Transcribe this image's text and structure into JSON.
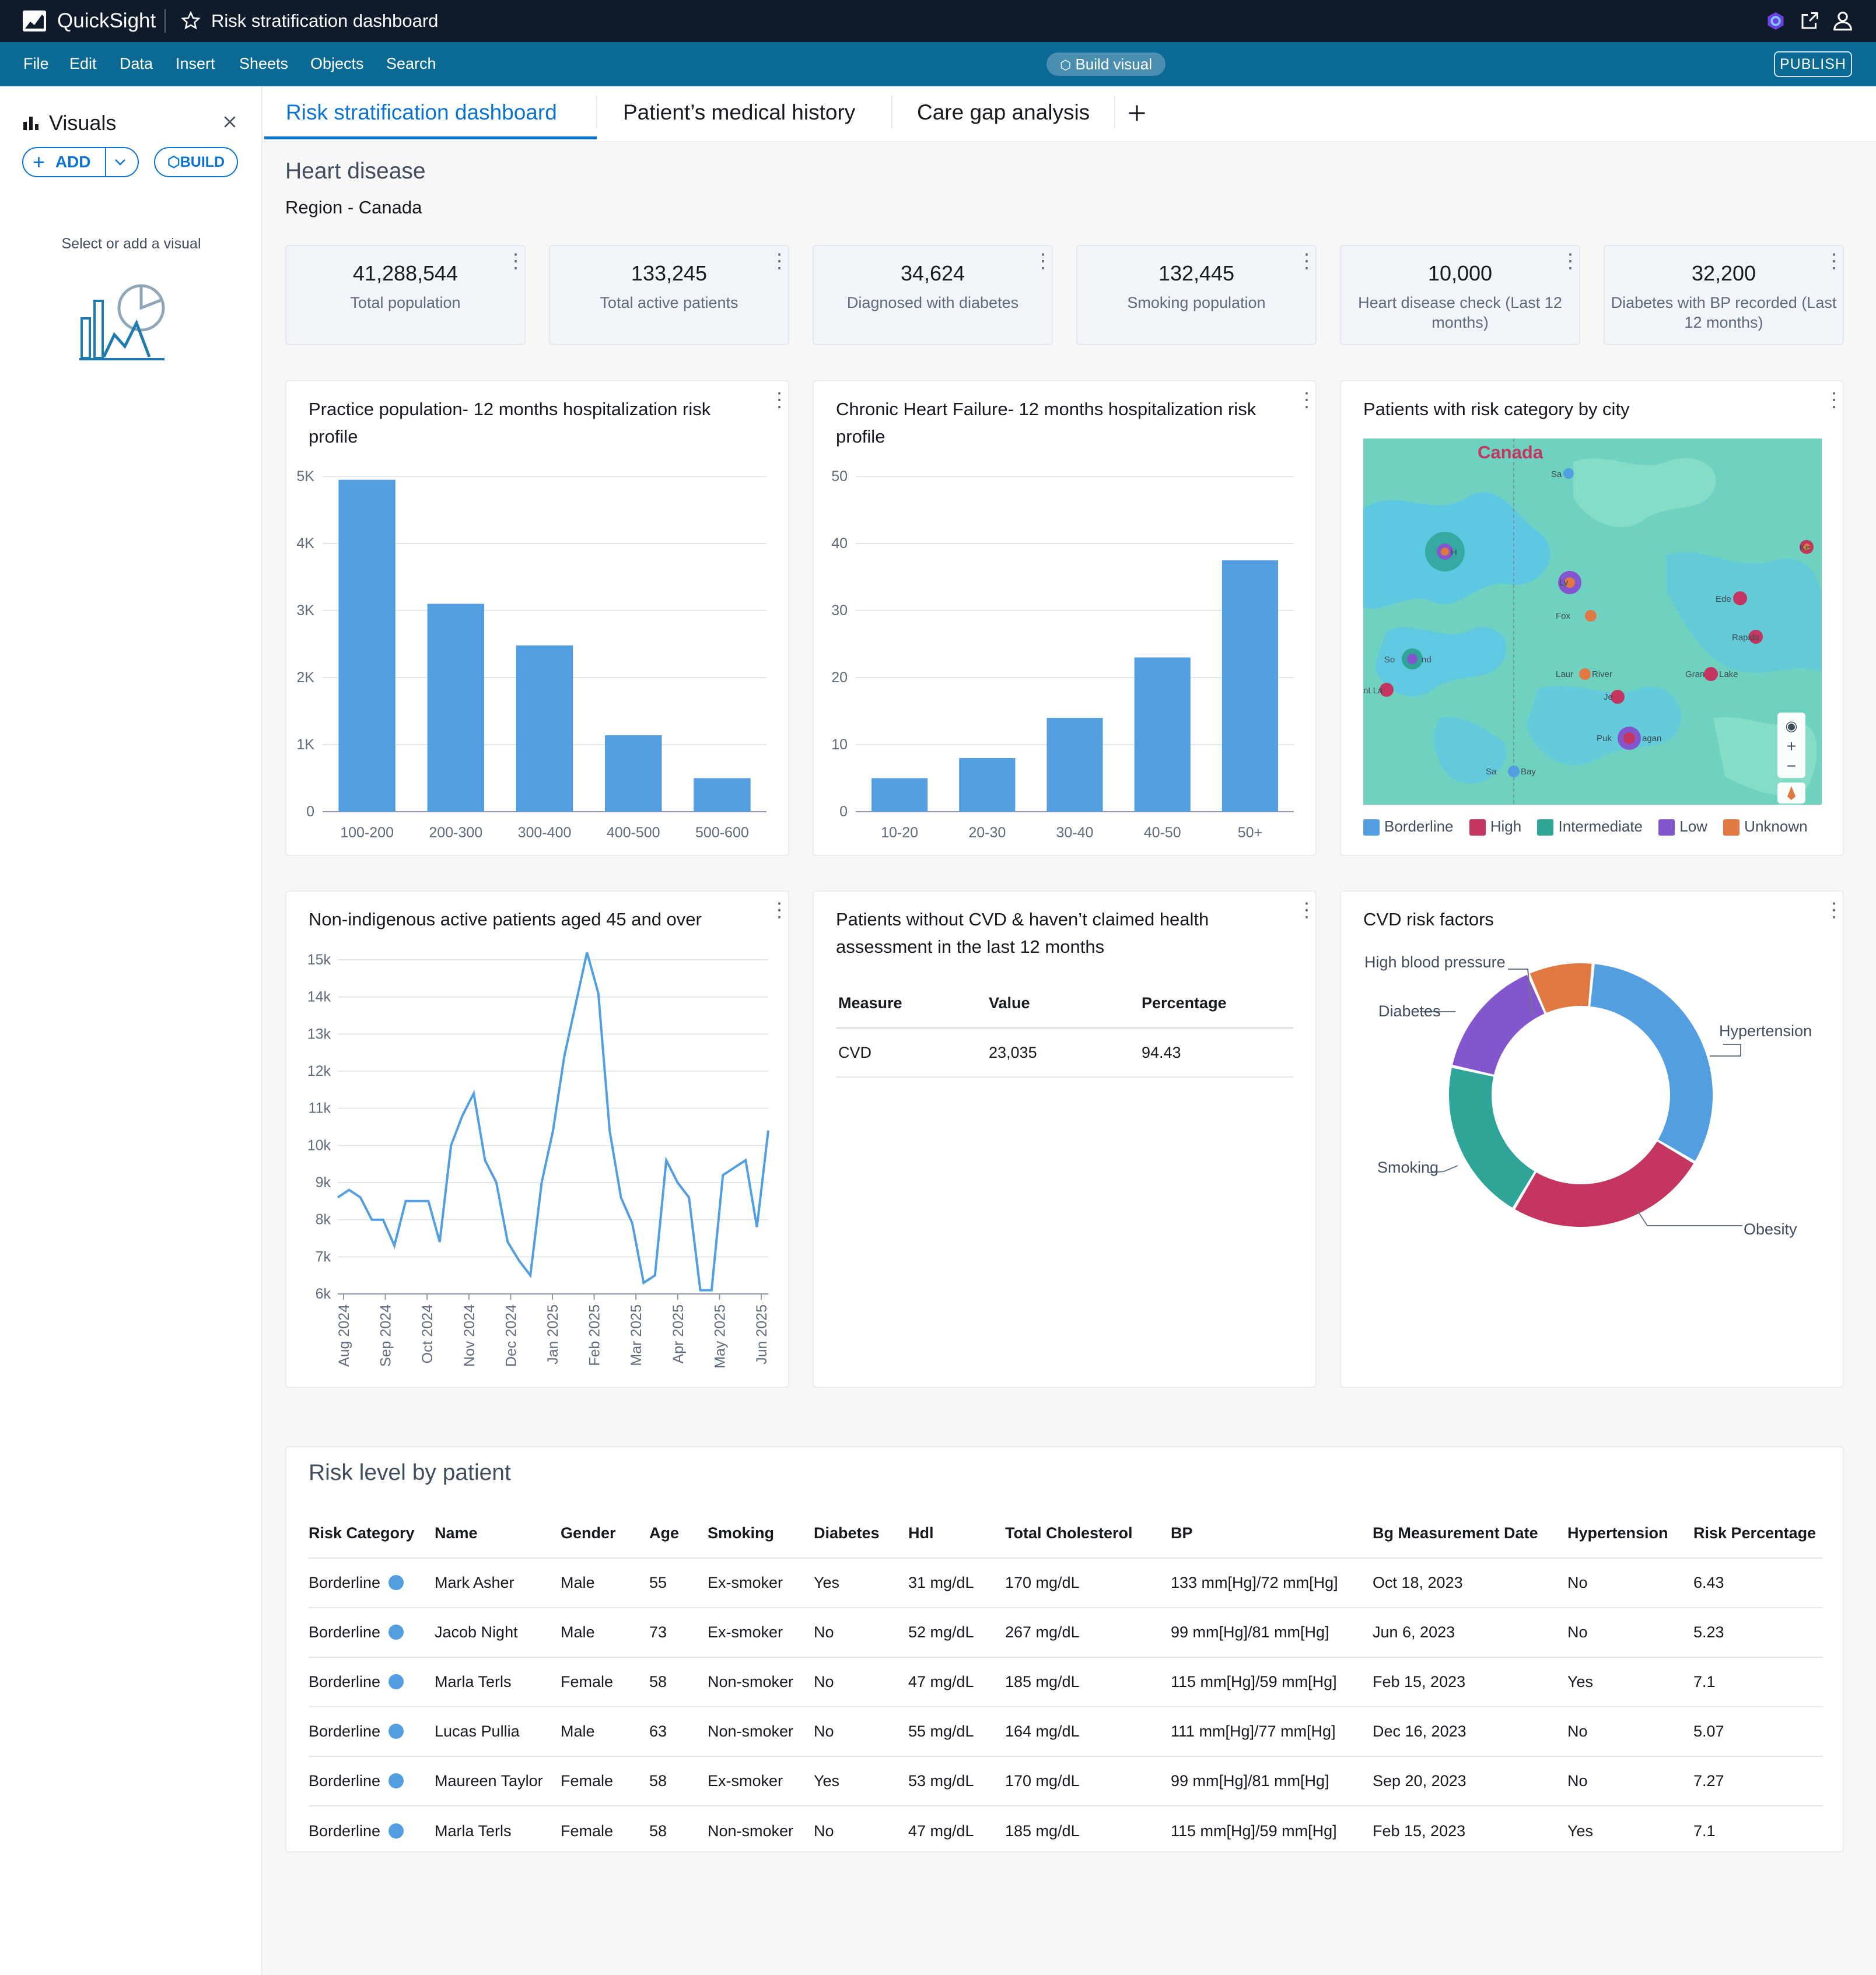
{
  "app": {
    "name": "QuickSight",
    "doc_title": "Risk stratification dashboard"
  },
  "menu": [
    "File",
    "Edit",
    "Data",
    "Insert",
    "Sheets",
    "Objects",
    "Search"
  ],
  "build_visual_label": "Build visual",
  "publish_label": "PUBLISH",
  "sidebar": {
    "title": "Visuals",
    "add_label": "ADD",
    "build_label": "BUILD",
    "empty_hint": "Select or add a visual"
  },
  "tabs": [
    "Risk stratification dashboard",
    "Patient’s medical history",
    "Care gap analysis"
  ],
  "header": {
    "title": "Heart disease",
    "subtitle": "Region - Canada"
  },
  "kpis": [
    {
      "value": "41,288,544",
      "label": "Total population"
    },
    {
      "value": "133,245",
      "label": "Total active patients"
    },
    {
      "value": "34,624",
      "label": "Diagnosed with diabetes"
    },
    {
      "value": "132,445",
      "label": "Smoking population"
    },
    {
      "value": "10,000",
      "label": "Heart disease check (Last 12 months)"
    },
    {
      "value": "32,200",
      "label": "Diabetes with BP recorded (Last 12 months)"
    }
  ],
  "chart_data": [
    {
      "type": "bar",
      "title": "Practice population- 12 months hospitalization risk profile",
      "categories": [
        "100-200",
        "200-300",
        "300-400",
        "400-500",
        "500-600"
      ],
      "values": [
        4950,
        3100,
        2480,
        1140,
        500
      ],
      "ylim": [
        0,
        5000
      ],
      "yticks": [
        "0",
        "1K",
        "2K",
        "3K",
        "4K",
        "5K"
      ],
      "color": "#529ee0"
    },
    {
      "type": "bar",
      "title": "Chronic Heart Failure- 12 months hospitalization risk profile",
      "categories": [
        "10-20",
        "20-30",
        "30-40",
        "40-50",
        "50+"
      ],
      "values": [
        5,
        8,
        14,
        23,
        37.5
      ],
      "ylim": [
        0,
        50
      ],
      "yticks": [
        "0",
        "10",
        "20",
        "30",
        "40",
        "50"
      ],
      "color": "#529ee0"
    },
    {
      "type": "line",
      "title": "Non-indigenous active patients aged 45 and over",
      "x_labels": [
        "Aug 2024",
        "Sep 2024",
        "Oct 2024",
        "Nov 2024",
        "Dec 2024",
        "Jan 2025",
        "Feb 2025",
        "Mar 2025",
        "Apr 2025",
        "May 2025",
        "Jun 2025"
      ],
      "values": [
        8600,
        8800,
        8600,
        8000,
        8000,
        7300,
        8500,
        8500,
        8500,
        7400,
        10000,
        10800,
        11400,
        9600,
        9000,
        7400,
        6900,
        6500,
        9000,
        10400,
        12400,
        13800,
        15200,
        14100,
        10400,
        8600,
        7900,
        6300,
        6500,
        9600,
        9000,
        8600,
        6100,
        6100,
        9200,
        9400,
        9600,
        7800,
        10400
      ],
      "ylim": [
        6000,
        15000
      ],
      "yticks": [
        "6k",
        "7k",
        "8k",
        "9k",
        "10k",
        "11k",
        "12k",
        "13k",
        "14k",
        "15k"
      ],
      "color": "#529ee0"
    },
    {
      "type": "pie",
      "title": "CVD risk factors",
      "categories": [
        "Hypertension",
        "Obesity",
        "Smoking",
        "Diabetes",
        "High blood pressure"
      ],
      "values": [
        32,
        25,
        20,
        15,
        8
      ],
      "colors": [
        "#529ee0",
        "#c4365f",
        "#2ea597",
        "#8456ce",
        "#e07941"
      ]
    }
  ],
  "map": {
    "title": "Patients with risk category by city",
    "country_label": "Canada",
    "places": [
      "Sa",
      "H",
      "Ly",
      "Ede",
      "Fox",
      "So",
      "nd",
      "Laur",
      "River",
      "Je",
      "Gran",
      "Lake",
      "Puk",
      "agan",
      "Sa",
      "Bay",
      "Rapids",
      "Ke",
      "nt La"
    ],
    "legend": [
      {
        "label": "Borderline",
        "color": "#529ee0"
      },
      {
        "label": "High",
        "color": "#c4365f"
      },
      {
        "label": "Intermediate",
        "color": "#2ea597"
      },
      {
        "label": "Low",
        "color": "#8456ce"
      },
      {
        "label": "Unknown",
        "color": "#e07941"
      }
    ]
  },
  "cvd_table": {
    "title": "Patients without CVD & haven’t claimed health assessment in the last 12 months",
    "columns": [
      "Measure",
      "Value",
      "Percentage"
    ],
    "rows": [
      [
        "CVD",
        "23,035",
        "94.43"
      ]
    ]
  },
  "patients": {
    "title": "Risk level by patient",
    "columns": [
      "Risk Category",
      "Name",
      "Gender",
      "Age",
      "Smoking",
      "Diabetes",
      "Hdl",
      "Total Cholesterol",
      "BP",
      "Bg Measurement Date",
      "Hypertension",
      "Risk Percentage"
    ],
    "rows": [
      [
        "Borderline",
        "Mark Asher",
        "Male",
        "55",
        "Ex-smoker",
        "Yes",
        "31 mg/dL",
        "170 mg/dL",
        "133 mm[Hg]/72 mm[Hg]",
        "Oct 18, 2023",
        "No",
        "6.43"
      ],
      [
        "Borderline",
        "Jacob Night",
        "Male",
        "73",
        "Ex-smoker",
        "No",
        "52 mg/dL",
        "267 mg/dL",
        "99 mm[Hg]/81 mm[Hg]",
        "Jun 6, 2023",
        "No",
        "5.23"
      ],
      [
        "Borderline",
        "Marla Terls",
        "Female",
        "58",
        "Non-smoker",
        "No",
        "47 mg/dL",
        "185 mg/dL",
        "115 mm[Hg]/59 mm[Hg]",
        "Feb 15, 2023",
        "Yes",
        "7.1"
      ],
      [
        "Borderline",
        "Lucas Pullia",
        "Male",
        "63",
        "Non-smoker",
        "No",
        "55 mg/dL",
        "164 mg/dL",
        "111 mm[Hg]/77 mm[Hg]",
        "Dec 16, 2023",
        "No",
        "5.07"
      ],
      [
        "Borderline",
        "Maureen Taylor",
        "Female",
        "58",
        "Ex-smoker",
        "Yes",
        "53 mg/dL",
        "170 mg/dL",
        "99 mm[Hg]/81 mm[Hg]",
        "Sep 20, 2023",
        "No",
        "7.27"
      ],
      [
        "Borderline",
        "Marla Terls",
        "Female",
        "58",
        "Non-smoker",
        "No",
        "47 mg/dL",
        "185 mg/dL",
        "115 mm[Hg]/59 mm[Hg]",
        "Feb 15, 2023",
        "Yes",
        "7.1"
      ]
    ]
  }
}
